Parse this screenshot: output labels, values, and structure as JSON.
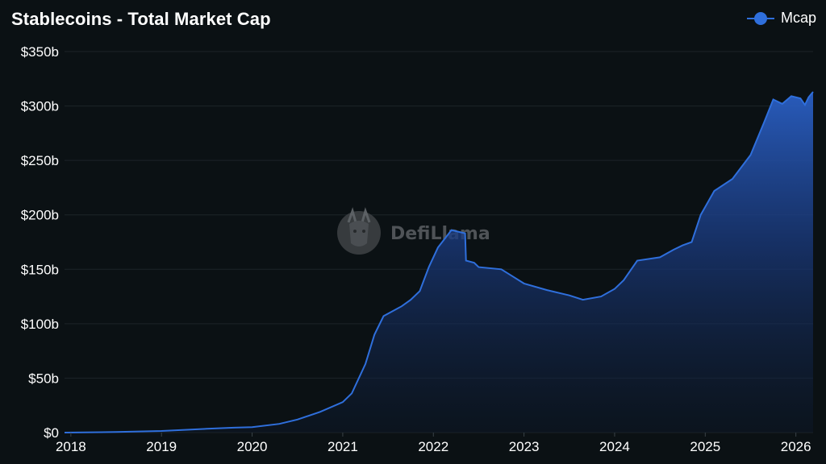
{
  "chart_data": {
    "type": "area",
    "title": "Stablecoins - Total Market Cap",
    "xlabel": "",
    "ylabel": "",
    "x_ticks": [
      "2018",
      "2019",
      "2020",
      "2021",
      "2022",
      "2023",
      "2024",
      "2025",
      "2026"
    ],
    "y_ticks": [
      "$0",
      "$50b",
      "$100b",
      "$150b",
      "$200b",
      "$250b",
      "$300b",
      "$350b"
    ],
    "xlim": [
      2017.93,
      2026.19
    ],
    "ylim": [
      0,
      350
    ],
    "grid": "horizontal",
    "legend_position": "top-right",
    "watermark": "DefiLlama",
    "series": [
      {
        "name": "Mcap",
        "color": "#2f6fdc",
        "points": [
          [
            2017.93,
            0.0
          ],
          [
            2018.5,
            0.5
          ],
          [
            2019.0,
            1.5
          ],
          [
            2019.5,
            3.5
          ],
          [
            2019.8,
            4.5
          ],
          [
            2020.0,
            5.0
          ],
          [
            2020.3,
            8.0
          ],
          [
            2020.5,
            12.0
          ],
          [
            2020.75,
            19.0
          ],
          [
            2021.0,
            28.0
          ],
          [
            2021.1,
            36.0
          ],
          [
            2021.25,
            63.0
          ],
          [
            2021.35,
            90.0
          ],
          [
            2021.45,
            107.0
          ],
          [
            2021.65,
            116.0
          ],
          [
            2021.75,
            122.0
          ],
          [
            2021.85,
            130.0
          ],
          [
            2021.95,
            152.0
          ],
          [
            2022.05,
            170.0
          ],
          [
            2022.2,
            186.0
          ],
          [
            2022.35,
            183.0
          ],
          [
            2022.36,
            158.0
          ],
          [
            2022.45,
            156.0
          ],
          [
            2022.5,
            152.0
          ],
          [
            2022.75,
            150.0
          ],
          [
            2023.0,
            137.0
          ],
          [
            2023.25,
            131.0
          ],
          [
            2023.5,
            126.0
          ],
          [
            2023.65,
            122.0
          ],
          [
            2023.85,
            125.0
          ],
          [
            2024.0,
            132.0
          ],
          [
            2024.1,
            140.0
          ],
          [
            2024.25,
            158.0
          ],
          [
            2024.5,
            161.0
          ],
          [
            2024.65,
            168.0
          ],
          [
            2024.75,
            172.0
          ],
          [
            2024.85,
            175.0
          ],
          [
            2024.95,
            200.0
          ],
          [
            2025.1,
            222.0
          ],
          [
            2025.3,
            233.0
          ],
          [
            2025.5,
            255.0
          ],
          [
            2025.65,
            285.0
          ],
          [
            2025.75,
            306.0
          ],
          [
            2025.85,
            302.0
          ],
          [
            2025.95,
            309.0
          ],
          [
            2026.05,
            307.0
          ],
          [
            2026.1,
            301.0
          ],
          [
            2026.14,
            308.0
          ],
          [
            2026.19,
            313.0
          ]
        ]
      }
    ]
  }
}
